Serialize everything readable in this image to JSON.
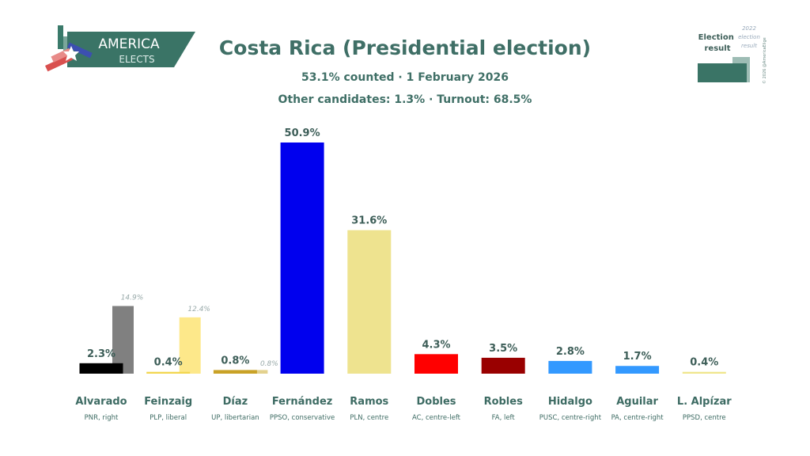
{
  "logo": {
    "line1": "AMERICA",
    "line2": "ELECTS"
  },
  "header": {
    "title": "Costa Rica (Presidential election)",
    "subtitle": "53.1% counted · 1 February 2026",
    "subtitle2": "Other candidates: 1.3% · Turnout: 68.5%"
  },
  "legend": {
    "current": "Election result",
    "previous": "2022 election result",
    "copyright": "© 2026 @AmericaElige"
  },
  "chart_data": {
    "type": "bar",
    "title": "Costa Rica (Presidential election)",
    "categories": [
      "Alvarado",
      "Feinzaig",
      "Díaz",
      "Fernández",
      "Ramos",
      "Dobles",
      "Robles",
      "Hidalgo",
      "Aguilar",
      "L. Alpízar"
    ],
    "parties": [
      "PNR, right",
      "PLP, liberal",
      "UP, libertarian",
      "PPSO, conservative",
      "PLN, centre",
      "AC, centre-left",
      "FA, left",
      "PUSC, centre-right",
      "PA, centre-right",
      "PPSD, centre"
    ],
    "series": [
      {
        "name": "Election result",
        "values": [
          2.3,
          0.4,
          0.8,
          50.9,
          31.6,
          4.3,
          3.5,
          2.8,
          1.7,
          0.4
        ],
        "labels": [
          "2.3%",
          "0.4%",
          "0.8%",
          "50.9%",
          "31.6%",
          "4.3%",
          "3.5%",
          "2.8%",
          "1.7%",
          "0.4%"
        ]
      },
      {
        "name": "2022 election result",
        "values": [
          14.9,
          12.4,
          0.8,
          null,
          null,
          null,
          null,
          null,
          null,
          null
        ],
        "labels": [
          "14.9%",
          "12.4%",
          "0.8%",
          "",
          "",
          "",
          "",
          "",
          "",
          ""
        ]
      }
    ],
    "colors": [
      "#000000",
      "#f2d64f",
      "#c9a227",
      "#0000ee",
      "#eee38f",
      "#ff0000",
      "#990000",
      "#3399ff",
      "#3399ff",
      "#f0e68c"
    ],
    "prev_colors": [
      "#808080",
      "#fde88a",
      "#e3d18e",
      "",
      "",
      "",
      "",
      "",
      "",
      ""
    ],
    "ylim": [
      0,
      52
    ],
    "grid": false
  }
}
